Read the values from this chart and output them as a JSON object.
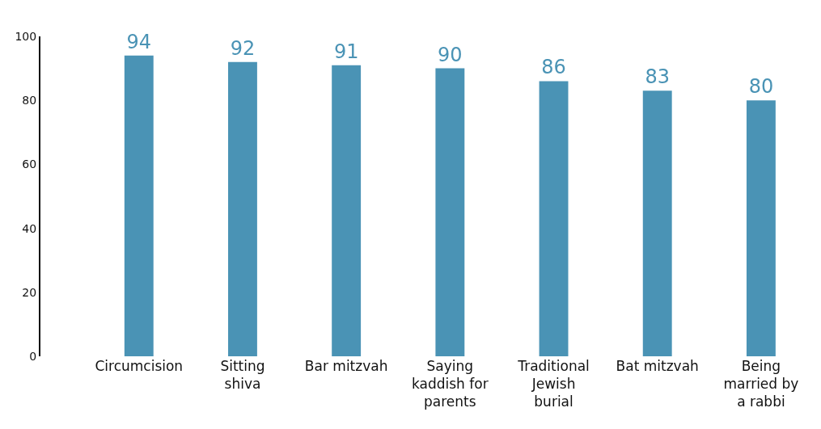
{
  "chart_data": {
    "type": "bar",
    "categories": [
      "Circumcision",
      "Sitting shiva",
      "Bar mitzvah",
      "Saying kaddish for parents",
      "Traditional Jewish burial",
      "Bat mitzvah",
      "Being married by a rabbi"
    ],
    "values": [
      94,
      92,
      91,
      90,
      86,
      83,
      80
    ],
    "color": "#4a93b5",
    "ylim": [
      0,
      100
    ],
    "yticks": [
      0,
      20,
      40,
      60,
      80,
      100
    ],
    "data_labels": true
  }
}
